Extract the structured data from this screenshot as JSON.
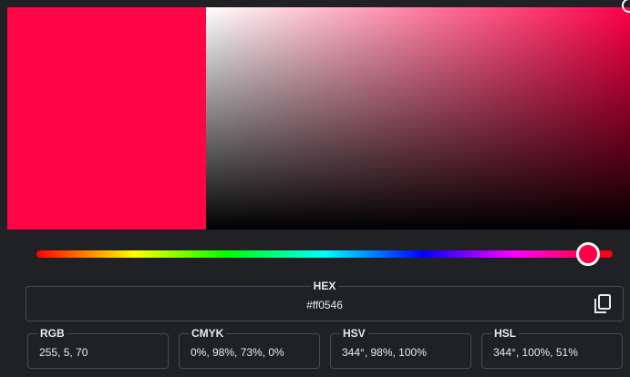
{
  "hex": {
    "label": "HEX",
    "value": "#ff0546"
  },
  "formats": [
    {
      "label": "RGB",
      "value": "255, 5, 70"
    },
    {
      "label": "CMYK",
      "value": "0%, 98%, 73%, 0%"
    },
    {
      "label": "HSV",
      "value": "344°, 98%, 100%"
    },
    {
      "label": "HSL",
      "value": "344°, 100%, 51%"
    }
  ]
}
